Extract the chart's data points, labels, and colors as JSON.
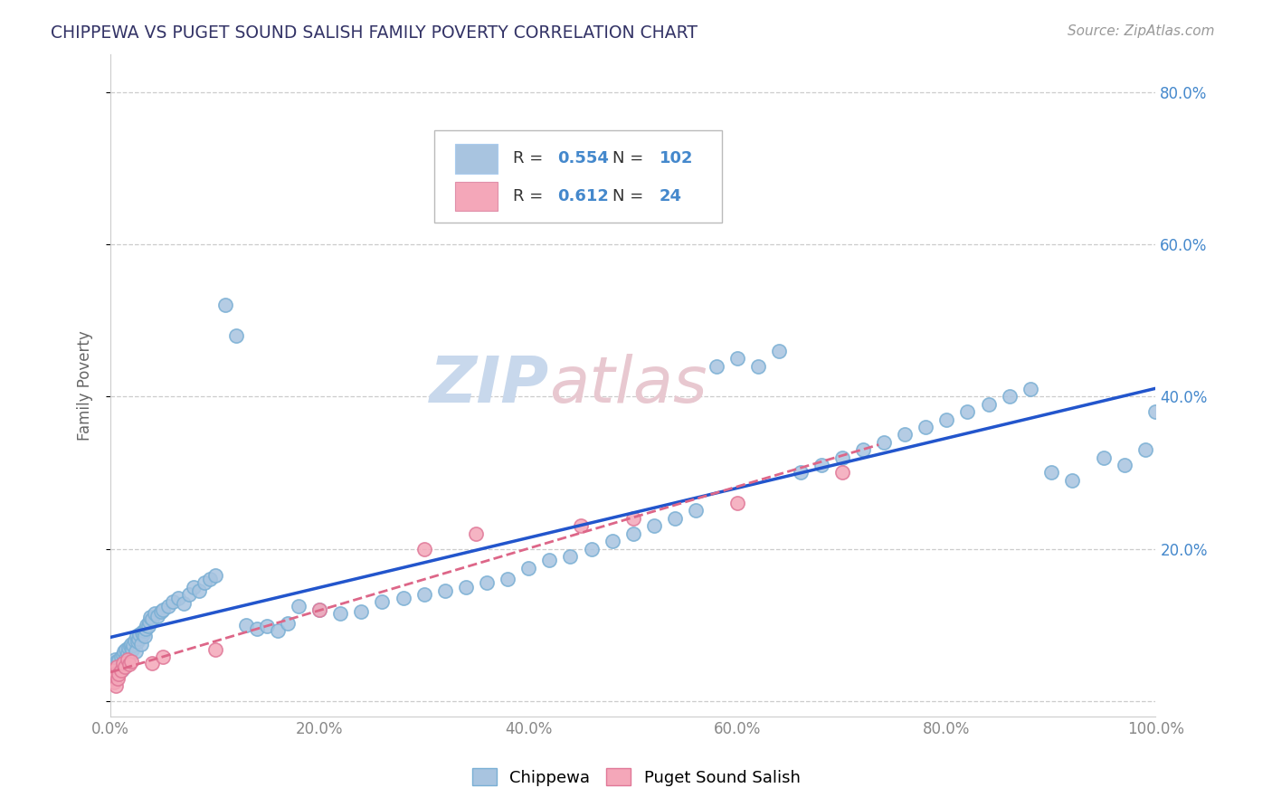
{
  "title": "CHIPPEWA VS PUGET SOUND SALISH FAMILY POVERTY CORRELATION CHART",
  "source_text": "Source: ZipAtlas.com",
  "ylabel_label": "Family Poverty",
  "legend_labels": [
    "Chippewa",
    "Puget Sound Salish"
  ],
  "chippewa_R": 0.554,
  "chippewa_N": 102,
  "puget_R": 0.612,
  "puget_N": 24,
  "chippewa_scatter_color": "#a8c4e0",
  "chippewa_edge_color": "#7aafd4",
  "puget_scatter_color": "#f4a7b9",
  "puget_edge_color": "#e07898",
  "chippewa_line_color": "#2255cc",
  "puget_line_color": "#dd6688",
  "title_color": "#333366",
  "source_color": "#999999",
  "watermark_color": "#dce6f0",
  "background_color": "#ffffff",
  "grid_color": "#cccccc",
  "axis_label_color": "#666666",
  "right_tick_color": "#4488cc",
  "x_ticks": [
    0.0,
    0.2,
    0.4,
    0.6,
    0.8,
    1.0
  ],
  "x_tick_labels": [
    "0.0%",
    "20.0%",
    "40.0%",
    "60.0%",
    "80.0%",
    "100.0%"
  ],
  "y_ticks": [
    0.0,
    0.2,
    0.4,
    0.6,
    0.8
  ],
  "y_tick_labels": [
    "",
    "20.0%",
    "40.0%",
    "60.0%",
    "80.0%"
  ],
  "xlim": [
    0.0,
    1.0
  ],
  "ylim": [
    -0.02,
    0.85
  ],
  "chippewa_x": [
    0.001,
    0.002,
    0.003,
    0.004,
    0.005,
    0.006,
    0.007,
    0.008,
    0.009,
    0.01,
    0.011,
    0.012,
    0.013,
    0.014,
    0.015,
    0.016,
    0.017,
    0.018,
    0.019,
    0.02,
    0.021,
    0.022,
    0.023,
    0.024,
    0.025,
    0.026,
    0.027,
    0.028,
    0.029,
    0.03,
    0.031,
    0.032,
    0.033,
    0.034,
    0.035,
    0.036,
    0.037,
    0.038,
    0.04,
    0.042,
    0.045,
    0.048,
    0.05,
    0.055,
    0.06,
    0.065,
    0.07,
    0.075,
    0.08,
    0.085,
    0.09,
    0.095,
    0.1,
    0.11,
    0.12,
    0.13,
    0.14,
    0.15,
    0.16,
    0.17,
    0.18,
    0.2,
    0.22,
    0.24,
    0.26,
    0.28,
    0.3,
    0.32,
    0.34,
    0.36,
    0.38,
    0.4,
    0.42,
    0.44,
    0.46,
    0.48,
    0.5,
    0.52,
    0.54,
    0.56,
    0.58,
    0.6,
    0.62,
    0.64,
    0.66,
    0.68,
    0.7,
    0.72,
    0.74,
    0.76,
    0.78,
    0.8,
    0.82,
    0.84,
    0.86,
    0.88,
    0.9,
    0.92,
    0.95,
    0.97,
    0.99,
    1.0
  ],
  "chippewa_y": [
    0.04,
    0.05,
    0.045,
    0.055,
    0.048,
    0.052,
    0.047,
    0.053,
    0.043,
    0.058,
    0.042,
    0.06,
    0.065,
    0.055,
    0.068,
    0.063,
    0.07,
    0.058,
    0.072,
    0.075,
    0.068,
    0.073,
    0.08,
    0.065,
    0.085,
    0.078,
    0.082,
    0.088,
    0.075,
    0.09,
    0.088,
    0.092,
    0.085,
    0.095,
    0.1,
    0.098,
    0.105,
    0.11,
    0.108,
    0.115,
    0.112,
    0.118,
    0.12,
    0.125,
    0.13,
    0.135,
    0.128,
    0.14,
    0.15,
    0.145,
    0.155,
    0.16,
    0.165,
    0.52,
    0.48,
    0.1,
    0.095,
    0.098,
    0.092,
    0.102,
    0.125,
    0.12,
    0.115,
    0.118,
    0.13,
    0.135,
    0.14,
    0.145,
    0.15,
    0.155,
    0.16,
    0.175,
    0.185,
    0.19,
    0.2,
    0.21,
    0.22,
    0.23,
    0.24,
    0.25,
    0.44,
    0.45,
    0.44,
    0.46,
    0.3,
    0.31,
    0.32,
    0.33,
    0.34,
    0.35,
    0.36,
    0.37,
    0.38,
    0.39,
    0.4,
    0.41,
    0.3,
    0.29,
    0.32,
    0.31,
    0.33,
    0.38
  ],
  "puget_x": [
    0.001,
    0.002,
    0.003,
    0.004,
    0.005,
    0.006,
    0.007,
    0.008,
    0.01,
    0.012,
    0.014,
    0.016,
    0.018,
    0.02,
    0.04,
    0.05,
    0.1,
    0.2,
    0.3,
    0.35,
    0.45,
    0.5,
    0.6,
    0.7
  ],
  "puget_y": [
    0.03,
    0.04,
    0.025,
    0.035,
    0.02,
    0.045,
    0.03,
    0.035,
    0.04,
    0.05,
    0.045,
    0.055,
    0.048,
    0.052,
    0.05,
    0.058,
    0.068,
    0.12,
    0.2,
    0.22,
    0.23,
    0.24,
    0.26,
    0.3
  ]
}
